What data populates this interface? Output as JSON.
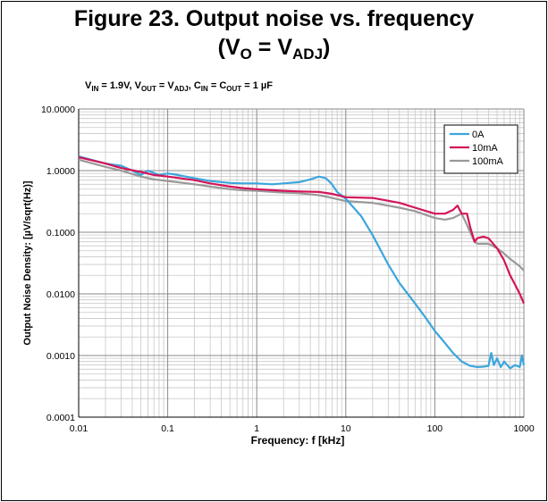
{
  "figure": {
    "title_line1": "Figure 23. Output noise vs. frequency",
    "title_line2_prefix": "(V",
    "title_line2_sub1": "O",
    "title_line2_mid": " = V",
    "title_line2_sub2": "ADJ",
    "title_line2_suffix": ")"
  },
  "conditions": {
    "vin_label": "V",
    "vin_sub": "IN",
    "vin_value": " = 1.9V, V",
    "vout_sub": "OUT",
    "vout_value": " = V",
    "adj_sub": "ADJ",
    "cin_value": ", C",
    "cin_sub": "IN",
    "cout_value": " = C",
    "cout_sub": "OUT",
    "cap_value": " = 1 µF"
  },
  "chart_data": {
    "type": "line",
    "xlabel": "Frequency: f [kHz]",
    "ylabel": "Output Noise Density: [µV/sqrt(Hz)]",
    "xscale": "log",
    "yscale": "log",
    "xlim": [
      0.01,
      1000
    ],
    "ylim": [
      0.0001,
      10
    ],
    "x_ticks": [
      0.01,
      0.1,
      1,
      10,
      100,
      1000
    ],
    "x_tick_labels": [
      "0.01",
      "0.1",
      "1",
      "10",
      "100",
      "1000"
    ],
    "y_ticks": [
      0.0001,
      0.001,
      0.01,
      0.1,
      1,
      10
    ],
    "y_tick_labels": [
      "0.0001",
      "0.0010",
      "0.0100",
      "0.1000",
      "1.0000",
      "10.0000"
    ],
    "grid": true,
    "legend_position": "top-right",
    "series": [
      {
        "name": "0A",
        "color": "#3aa6dd",
        "points": [
          [
            0.01,
            1.7
          ],
          [
            0.02,
            1.3
          ],
          [
            0.03,
            1.2
          ],
          [
            0.04,
            1.0
          ],
          [
            0.05,
            0.85
          ],
          [
            0.06,
            1.0
          ],
          [
            0.08,
            0.85
          ],
          [
            0.1,
            0.9
          ],
          [
            0.13,
            0.85
          ],
          [
            0.2,
            0.75
          ],
          [
            0.3,
            0.68
          ],
          [
            0.5,
            0.63
          ],
          [
            0.7,
            0.62
          ],
          [
            1,
            0.62
          ],
          [
            1.5,
            0.6
          ],
          [
            2,
            0.62
          ],
          [
            3,
            0.65
          ],
          [
            4,
            0.72
          ],
          [
            5,
            0.8
          ],
          [
            6,
            0.75
          ],
          [
            7,
            0.6
          ],
          [
            8,
            0.45
          ],
          [
            10,
            0.35
          ],
          [
            15,
            0.18
          ],
          [
            20,
            0.09
          ],
          [
            30,
            0.03
          ],
          [
            40,
            0.015
          ],
          [
            60,
            0.007
          ],
          [
            80,
            0.004
          ],
          [
            100,
            0.0025
          ],
          [
            130,
            0.0016
          ],
          [
            160,
            0.0011
          ],
          [
            200,
            0.0008
          ],
          [
            250,
            0.00068
          ],
          [
            300,
            0.00065
          ],
          [
            350,
            0.00066
          ],
          [
            400,
            0.00068
          ],
          [
            430,
            0.0011
          ],
          [
            460,
            0.0007
          ],
          [
            500,
            0.0009
          ],
          [
            550,
            0.00065
          ],
          [
            600,
            0.0008
          ],
          [
            700,
            0.00062
          ],
          [
            800,
            0.0007
          ],
          [
            900,
            0.00065
          ],
          [
            950,
            0.001
          ],
          [
            1000,
            0.0007
          ]
        ]
      },
      {
        "name": "10mA",
        "color": "#d4145a",
        "points": [
          [
            0.01,
            1.65
          ],
          [
            0.02,
            1.3
          ],
          [
            0.03,
            1.1
          ],
          [
            0.05,
            0.95
          ],
          [
            0.07,
            0.85
          ],
          [
            0.1,
            0.8
          ],
          [
            0.2,
            0.7
          ],
          [
            0.3,
            0.62
          ],
          [
            0.5,
            0.55
          ],
          [
            0.7,
            0.52
          ],
          [
            1,
            0.5
          ],
          [
            2,
            0.47
          ],
          [
            3,
            0.46
          ],
          [
            5,
            0.45
          ],
          [
            7,
            0.42
          ],
          [
            10,
            0.37
          ],
          [
            20,
            0.36
          ],
          [
            40,
            0.3
          ],
          [
            60,
            0.25
          ],
          [
            100,
            0.2
          ],
          [
            130,
            0.2
          ],
          [
            160,
            0.23
          ],
          [
            180,
            0.27
          ],
          [
            200,
            0.2
          ],
          [
            230,
            0.2
          ],
          [
            250,
            0.12
          ],
          [
            280,
            0.07
          ],
          [
            300,
            0.08
          ],
          [
            350,
            0.085
          ],
          [
            400,
            0.08
          ],
          [
            500,
            0.055
          ],
          [
            600,
            0.035
          ],
          [
            700,
            0.02
          ],
          [
            800,
            0.014
          ],
          [
            900,
            0.01
          ],
          [
            1000,
            0.007
          ]
        ]
      },
      {
        "name": "100mA",
        "color": "#999999",
        "points": [
          [
            0.01,
            1.5
          ],
          [
            0.02,
            1.15
          ],
          [
            0.03,
            1.0
          ],
          [
            0.05,
            0.8
          ],
          [
            0.07,
            0.72
          ],
          [
            0.1,
            0.68
          ],
          [
            0.2,
            0.6
          ],
          [
            0.3,
            0.55
          ],
          [
            0.5,
            0.5
          ],
          [
            0.7,
            0.48
          ],
          [
            1,
            0.47
          ],
          [
            2,
            0.44
          ],
          [
            3,
            0.43
          ],
          [
            5,
            0.4
          ],
          [
            7,
            0.36
          ],
          [
            10,
            0.32
          ],
          [
            20,
            0.3
          ],
          [
            40,
            0.25
          ],
          [
            60,
            0.22
          ],
          [
            100,
            0.17
          ],
          [
            130,
            0.16
          ],
          [
            160,
            0.17
          ],
          [
            200,
            0.2
          ],
          [
            220,
            0.15
          ],
          [
            250,
            0.1
          ],
          [
            280,
            0.07
          ],
          [
            300,
            0.065
          ],
          [
            400,
            0.065
          ],
          [
            500,
            0.055
          ],
          [
            600,
            0.045
          ],
          [
            700,
            0.037
          ],
          [
            800,
            0.032
          ],
          [
            900,
            0.028
          ],
          [
            1000,
            0.024
          ]
        ]
      }
    ]
  }
}
